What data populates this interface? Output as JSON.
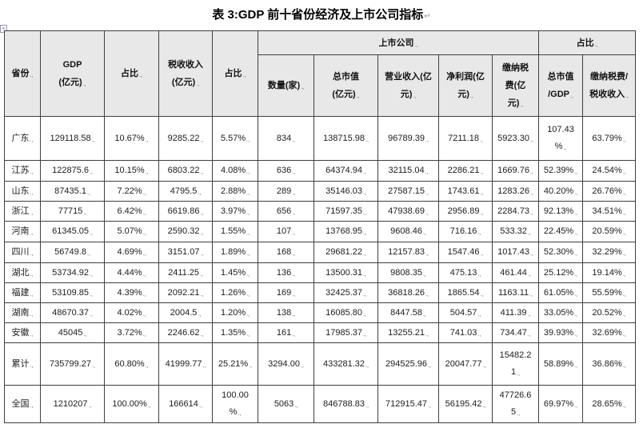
{
  "title": "表 3:GDP 前十省份经济及上市公司指标",
  "table": {
    "header": {
      "province": "省份",
      "gdp": "GDP\n(亿元)",
      "gdp_share": "占比",
      "tax": "税收收入\n(亿元)",
      "tax_share": "占比",
      "listed_group": "上市公司",
      "ratio_group": "占比",
      "count": "数量(家)",
      "mktcap": "总市值\n(亿元)",
      "revenue": "营业收入(亿\n元)",
      "profit": "净利润(亿\n元)",
      "taxpaid": "缴纳税\n费(亿\n元)",
      "mktcap_gdp": "总市值\n/GDP",
      "taxpaid_tax": "缴纳税费/\n税收收入"
    },
    "rows": [
      [
        "广东",
        "129118.58",
        "10.67%",
        "9285.22",
        "5.57%",
        "834",
        "138715.98",
        "96789.39",
        "7211.18",
        "5923.30",
        "107.43\n%",
        "63.79%"
      ],
      [
        "江苏",
        "122875.6",
        "10.15%",
        "6803.22",
        "4.08%",
        "636",
        "64374.94",
        "32115.04",
        "2286.21",
        "1669.76",
        "52.39%",
        "24.54%"
      ],
      [
        "山东",
        "87435.1",
        "7.22%",
        "4795.5",
        "2.88%",
        "289",
        "35146.03",
        "27587.15",
        "1743.61",
        "1283.26",
        "40.20%",
        "26.76%"
      ],
      [
        "浙江",
        "77715",
        "6.42%",
        "6619.86",
        "3.97%",
        "656",
        "71597.35",
        "47938.69",
        "2956.89",
        "2284.73",
        "92.13%",
        "34.51%"
      ],
      [
        "河南",
        "61345.05",
        "5.07%",
        "2590.32",
        "1.55%",
        "107",
        "13768.95",
        "9608.46",
        "716.16",
        "533.32",
        "22.45%",
        "20.59%"
      ],
      [
        "四川",
        "56749.8",
        "4.69%",
        "3151.07",
        "1.89%",
        "168",
        "29681.22",
        "12157.83",
        "1547.46",
        "1017.43",
        "52.30%",
        "32.29%"
      ],
      [
        "湖北",
        "53734.92",
        "4.44%",
        "2411.25",
        "1.45%",
        "136",
        "13500.31",
        "9808.35",
        "475.13",
        "461.44",
        "25.12%",
        "19.14%"
      ],
      [
        "福建",
        "53109.85",
        "4.39%",
        "2092.21",
        "1.26%",
        "169",
        "32425.37",
        "36818.26",
        "1865.54",
        "1163.11",
        "61.05%",
        "55.59%"
      ],
      [
        "湖南",
        "48670.37",
        "4.02%",
        "2004.5",
        "1.20%",
        "138",
        "16085.80",
        "8447.58",
        "504.57",
        "411.39",
        "33.05%",
        "20.52%"
      ],
      [
        "安徽",
        "45045",
        "3.72%",
        "2246.62",
        "1.35%",
        "161",
        "17985.37",
        "13255.21",
        "741.03",
        "734.47",
        "39.93%",
        "32.69%"
      ],
      [
        "累计",
        "735799.27",
        "60.80%",
        "41999.77",
        "25.21%",
        "3294.00",
        "433281.32",
        "294525.96",
        "20047.77",
        "15482.2\n1",
        "58.89%",
        "36.86%"
      ],
      [
        "全国",
        "1210207",
        "100.00%",
        "166614",
        "100.00\n%",
        "5063",
        "846788.83",
        "712915.47",
        "56195.42",
        "47726.6\n5",
        "69.97%",
        "28.65%"
      ]
    ]
  }
}
